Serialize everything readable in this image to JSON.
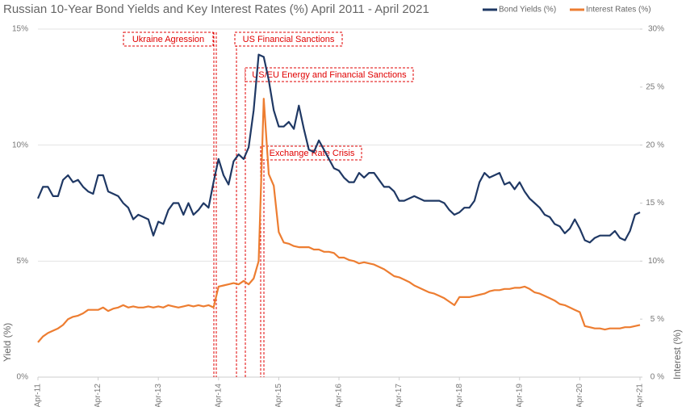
{
  "chart_data": {
    "type": "line",
    "title": "Russian 10-Year Bond Yields and Key Interest Rates (%) April 2011 - April 2021",
    "ylabel": "Yield (%)",
    "y2label": "Interest (%)",
    "categories": [
      "Apr-11",
      null,
      null,
      null,
      null,
      null,
      null,
      null,
      null,
      null,
      null,
      null,
      "Apr-12",
      null,
      null,
      null,
      null,
      null,
      null,
      null,
      null,
      null,
      null,
      null,
      "Apr-13",
      null,
      null,
      null,
      null,
      null,
      null,
      null,
      null,
      null,
      null,
      null,
      "Apr-14",
      null,
      null,
      null,
      null,
      null,
      null,
      null,
      null,
      null,
      null,
      null,
      "Apr-15",
      null,
      null,
      null,
      null,
      null,
      null,
      null,
      null,
      null,
      null,
      null,
      "Apr-16",
      null,
      null,
      null,
      null,
      null,
      null,
      null,
      null,
      null,
      null,
      null,
      "Apr-17",
      null,
      null,
      null,
      null,
      null,
      null,
      null,
      null,
      null,
      null,
      null,
      "Apr-18",
      null,
      null,
      null,
      null,
      null,
      null,
      null,
      null,
      null,
      null,
      null,
      "Apr-19",
      null,
      null,
      null,
      null,
      null,
      null,
      null,
      null,
      null,
      null,
      null,
      "Apr-20",
      null,
      null,
      null,
      null,
      null,
      null,
      null,
      null,
      null,
      null,
      null,
      "Apr-21"
    ],
    "series": [
      {
        "name": "Bond Yields (%)",
        "color": "#1f3864",
        "axis": "y",
        "values": [
          7.7,
          8.2,
          8.2,
          7.8,
          7.8,
          8.5,
          8.7,
          8.4,
          8.5,
          8.2,
          8.0,
          7.9,
          8.7,
          8.7,
          8.0,
          7.9,
          7.8,
          7.5,
          7.3,
          6.8,
          7.0,
          6.9,
          6.8,
          6.1,
          6.7,
          6.6,
          7.2,
          7.5,
          7.5,
          7.0,
          7.5,
          7.0,
          7.2,
          7.5,
          7.3,
          8.4,
          9.4,
          8.7,
          8.3,
          9.3,
          9.6,
          9.4,
          9.9,
          11.5,
          13.9,
          13.8,
          12.8,
          11.5,
          10.8,
          10.8,
          11.0,
          10.7,
          11.7,
          10.7,
          9.8,
          9.7,
          10.2,
          9.8,
          9.4,
          9.0,
          8.9,
          8.6,
          8.4,
          8.4,
          8.8,
          8.6,
          8.8,
          8.8,
          8.5,
          8.2,
          8.2,
          8.0,
          7.6,
          7.6,
          7.7,
          7.8,
          7.7,
          7.6,
          7.6,
          7.6,
          7.6,
          7.5,
          7.2,
          7.0,
          7.1,
          7.3,
          7.3,
          7.6,
          8.4,
          8.8,
          8.6,
          8.7,
          8.8,
          8.3,
          8.4,
          8.1,
          8.4,
          8.0,
          7.7,
          7.5,
          7.3,
          7.0,
          6.9,
          6.6,
          6.5,
          6.2,
          6.4,
          6.8,
          6.4,
          5.9,
          5.8,
          6.0,
          6.1,
          6.1,
          6.1,
          6.3,
          6.0,
          5.9,
          6.3,
          7.0,
          7.1
        ]
      },
      {
        "name": "Interest Rates (%)",
        "color": "#ed7d31",
        "axis": "y2",
        "values": [
          3.0,
          3.5,
          3.8,
          4.0,
          4.2,
          4.5,
          5.0,
          5.2,
          5.3,
          5.5,
          5.8,
          5.8,
          5.8,
          6.0,
          5.7,
          5.9,
          6.0,
          6.2,
          6.0,
          6.1,
          6.0,
          6.0,
          6.1,
          6.0,
          6.1,
          6.0,
          6.2,
          6.1,
          6.0,
          6.1,
          6.2,
          6.1,
          6.2,
          6.1,
          6.2,
          6.0,
          7.8,
          7.9,
          8.0,
          8.1,
          8.0,
          8.3,
          8.0,
          8.5,
          10.0,
          24.0,
          17.5,
          16.5,
          12.5,
          11.6,
          11.5,
          11.3,
          11.2,
          11.2,
          11.2,
          11.0,
          11.0,
          10.8,
          10.8,
          10.7,
          10.3,
          10.3,
          10.1,
          10.0,
          9.8,
          9.9,
          9.8,
          9.7,
          9.5,
          9.3,
          9.0,
          8.7,
          8.6,
          8.4,
          8.2,
          7.9,
          7.7,
          7.5,
          7.3,
          7.2,
          7.0,
          6.8,
          6.5,
          6.2,
          6.9,
          6.9,
          6.9,
          7.0,
          7.1,
          7.2,
          7.4,
          7.5,
          7.5,
          7.6,
          7.6,
          7.7,
          7.7,
          7.8,
          7.6,
          7.3,
          7.2,
          7.0,
          6.8,
          6.6,
          6.3,
          6.2,
          6.0,
          5.8,
          5.6,
          4.4,
          4.3,
          4.2,
          4.2,
          4.1,
          4.2,
          4.2,
          4.2,
          4.3,
          4.3,
          4.4,
          4.5
        ]
      }
    ],
    "ylim": [
      0,
      15
    ],
    "yticks": [
      {
        "value": 0,
        "label": "0%"
      },
      {
        "value": 5,
        "label": "5%"
      },
      {
        "value": 10,
        "label": "10%"
      },
      {
        "value": 15,
        "label": "15%"
      }
    ],
    "y2lim": [
      0,
      30
    ],
    "y2ticks": [
      {
        "value": 0,
        "label": "0 %"
      },
      {
        "value": 5,
        "label": "5 %"
      },
      {
        "value": 10,
        "label": "10%"
      },
      {
        "value": 15,
        "label": "15 %"
      },
      {
        "value": 20,
        "label": "20 %"
      },
      {
        "value": 25,
        "label": "25 %"
      },
      {
        "value": 30,
        "label": "30%"
      }
    ],
    "grid": true,
    "legend": "top-right",
    "annotations": [
      "Ukraine Agression",
      "US Financial Sanctions",
      "US/EU Energy and Financial Sanctions",
      "Exchange Rate Crisis"
    ],
    "annotation_color": "#e00000"
  }
}
